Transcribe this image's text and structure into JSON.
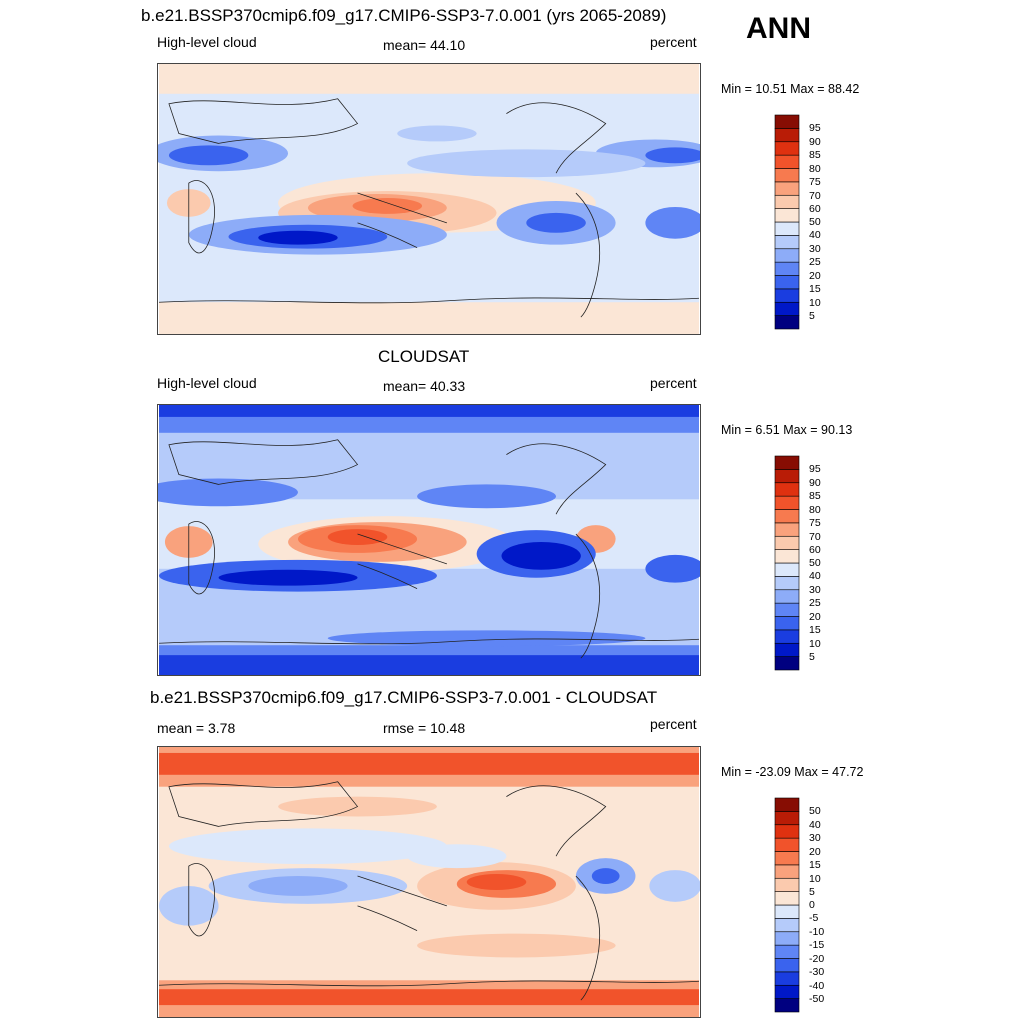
{
  "season": "ANN",
  "colors": {
    "abs_scale": [
      "#000080",
      "#0018c8",
      "#1a3de0",
      "#3a63ee",
      "#5f85f5",
      "#8dacf8",
      "#b5cbfa",
      "#dce8fb",
      "#fbe6d6",
      "#fbcaae",
      "#f9a27d",
      "#f77a4f",
      "#f1532b",
      "#df3110",
      "#b91c06",
      "#870d03"
    ],
    "diff_scale": [
      "#000080",
      "#0018c8",
      "#1a3de0",
      "#3a63ee",
      "#5f85f5",
      "#8dacf8",
      "#b5cbfa",
      "#dce8fb",
      "#fbe6d6",
      "#fbcaae",
      "#f9a27d",
      "#f77a4f",
      "#f1532b",
      "#df3110",
      "#b91c06",
      "#870d03"
    ]
  },
  "panels": [
    {
      "title": "b.e21.BSSP370cmip6.f09_g17.CMIP6-SSP3-7.0.001 (yrs 2065-2089)",
      "left_label": "High-level cloud",
      "center_label": "mean=  44.10",
      "units": "percent",
      "minmax": "Min =  10.51 Max =  88.42",
      "ticks": [
        "5",
        "10",
        "15",
        "20",
        "25",
        "30",
        "40",
        "50",
        "60",
        "70",
        "75",
        "80",
        "85",
        "90",
        "95"
      ]
    },
    {
      "title": "CLOUDSAT",
      "left_label": "High-level cloud",
      "center_label": "mean=  40.33",
      "units": "percent",
      "minmax": "Min =   6.51 Max =  90.13",
      "ticks": [
        "5",
        "10",
        "15",
        "20",
        "25",
        "30",
        "40",
        "50",
        "60",
        "70",
        "75",
        "80",
        "85",
        "90",
        "95"
      ]
    },
    {
      "title": "b.e21.BSSP370cmip6.f09_g17.CMIP6-SSP3-7.0.001 - CLOUDSAT",
      "left_label": "mean =   3.78",
      "center_label": "rmse =  10.48",
      "units": "percent",
      "minmax": "Min = -23.09 Max =  47.72",
      "ticks": [
        "-50",
        "-40",
        "-30",
        "-20",
        "-15",
        "-10",
        "-5",
        "0",
        "5",
        "10",
        "15",
        "20",
        "30",
        "40",
        "50"
      ]
    }
  ],
  "chart_data": [
    {
      "type": "heatmap",
      "title": "b.e21.BSSP370cmip6.f09_g17.CMIP6-SSP3-7.0.001 (yrs 2065-2089)",
      "variable": "High-level cloud",
      "units": "percent",
      "mean": 44.1,
      "min": 10.51,
      "max": 88.42,
      "contour_levels": [
        5,
        10,
        15,
        20,
        25,
        30,
        40,
        50,
        60,
        70,
        75,
        80,
        85,
        90,
        95
      ]
    },
    {
      "type": "heatmap",
      "title": "CLOUDSAT",
      "variable": "High-level cloud",
      "units": "percent",
      "mean": 40.33,
      "min": 6.51,
      "max": 90.13,
      "contour_levels": [
        5,
        10,
        15,
        20,
        25,
        30,
        40,
        50,
        60,
        70,
        75,
        80,
        85,
        90,
        95
      ]
    },
    {
      "type": "heatmap",
      "title": "b.e21.BSSP370cmip6.f09_g17.CMIP6-SSP3-7.0.001 - CLOUDSAT",
      "units": "percent",
      "mean": 3.78,
      "rmse": 10.48,
      "min": -23.09,
      "max": 47.72,
      "contour_levels": [
        -50,
        -40,
        -30,
        -20,
        -15,
        -10,
        -5,
        0,
        5,
        10,
        15,
        20,
        30,
        40,
        50
      ]
    }
  ]
}
